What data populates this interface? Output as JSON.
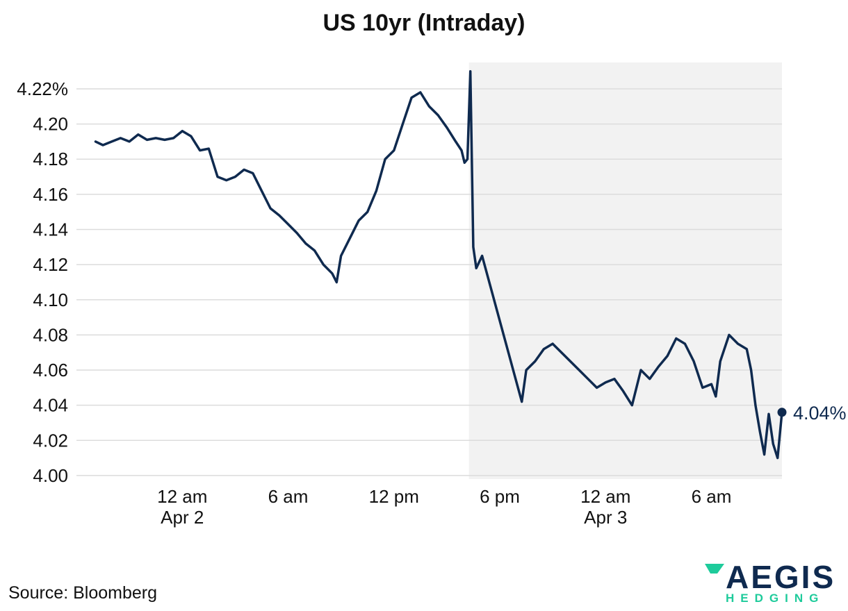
{
  "chart_data": {
    "type": "line",
    "title": "US 10yr (Intraday)",
    "xlabel": "",
    "ylabel": "",
    "y_unit": "%",
    "ylim": [
      3.998,
      4.235
    ],
    "y_ticks": [
      {
        "value": 4.22,
        "label": "4.22%"
      },
      {
        "value": 4.2,
        "label": "4.20"
      },
      {
        "value": 4.18,
        "label": "4.18"
      },
      {
        "value": 4.16,
        "label": "4.16"
      },
      {
        "value": 4.14,
        "label": "4.14"
      },
      {
        "value": 4.12,
        "label": "4.12"
      },
      {
        "value": 4.1,
        "label": "4.10"
      },
      {
        "value": 4.08,
        "label": "4.08"
      },
      {
        "value": 4.06,
        "label": "4.06"
      },
      {
        "value": 4.04,
        "label": "4.04"
      },
      {
        "value": 4.02,
        "label": "4.02"
      },
      {
        "value": 4.0,
        "label": "4.00"
      }
    ],
    "xlim": [
      "Apr 1 18:00",
      "Apr 3 10:00"
    ],
    "x_ticks": [
      {
        "value": "Apr 2 00:00",
        "label": "12 am",
        "sublabel": "Apr 2"
      },
      {
        "value": "Apr 2 06:00",
        "label": "6 am",
        "sublabel": ""
      },
      {
        "value": "Apr 2 12:00",
        "label": "12 pm",
        "sublabel": ""
      },
      {
        "value": "Apr 2 18:00",
        "label": "6 pm",
        "sublabel": ""
      },
      {
        "value": "Apr 3 00:00",
        "label": "12 am",
        "sublabel": "Apr 3"
      },
      {
        "value": "Apr 3 06:00",
        "label": "6 am",
        "sublabel": ""
      }
    ],
    "shaded_region": {
      "from": "Apr 2 16:15",
      "to": "Apr 3 10:00",
      "color": "#f2f2f2"
    },
    "grid": true,
    "legend": "none",
    "series": [
      {
        "color": "#0f2a4f",
        "x": [
          "Apr 1 19:05",
          "Apr 1 19:30",
          "Apr 1 20:00",
          "Apr 1 20:30",
          "Apr 1 21:00",
          "Apr 1 21:30",
          "Apr 1 22:00",
          "Apr 1 22:30",
          "Apr 1 23:00",
          "Apr 1 23:30",
          "Apr 2 00:00",
          "Apr 2 00:30",
          "Apr 2 01:00",
          "Apr 2 01:30",
          "Apr 2 02:00",
          "Apr 2 02:30",
          "Apr 2 03:00",
          "Apr 2 03:30",
          "Apr 2 04:00",
          "Apr 2 04:30",
          "Apr 2 05:00",
          "Apr 2 05:30",
          "Apr 2 06:00",
          "Apr 2 06:30",
          "Apr 2 07:00",
          "Apr 2 07:30",
          "Apr 2 08:00",
          "Apr 2 08:30",
          "Apr 2 08:45",
          "Apr 2 09:00",
          "Apr 2 09:30",
          "Apr 2 10:00",
          "Apr 2 10:30",
          "Apr 2 11:00",
          "Apr 2 11:30",
          "Apr 2 12:00",
          "Apr 2 12:30",
          "Apr 2 13:00",
          "Apr 2 13:30",
          "Apr 2 14:00",
          "Apr 2 14:30",
          "Apr 2 15:00",
          "Apr 2 15:30",
          "Apr 2 15:50",
          "Apr 2 16:00",
          "Apr 2 16:10",
          "Apr 2 16:20",
          "Apr 2 16:30",
          "Apr 2 16:40",
          "Apr 2 17:00",
          "Apr 2 19:15",
          "Apr 2 19:30",
          "Apr 2 20:00",
          "Apr 2 20:30",
          "Apr 2 21:00",
          "Apr 2 21:30",
          "Apr 2 22:00",
          "Apr 2 22:30",
          "Apr 2 23:00",
          "Apr 2 23:30",
          "Apr 3 00:00",
          "Apr 3 00:30",
          "Apr 3 01:00",
          "Apr 3 01:30",
          "Apr 3 02:00",
          "Apr 3 02:30",
          "Apr 3 03:00",
          "Apr 3 03:30",
          "Apr 3 04:00",
          "Apr 3 04:30",
          "Apr 3 05:00",
          "Apr 3 05:30",
          "Apr 3 06:00",
          "Apr 3 06:15",
          "Apr 3 06:30",
          "Apr 3 07:00",
          "Apr 3 07:30",
          "Apr 3 08:00",
          "Apr 3 08:15",
          "Apr 3 08:30",
          "Apr 3 08:45",
          "Apr 3 09:00",
          "Apr 3 09:15",
          "Apr 3 09:30",
          "Apr 3 09:45",
          "Apr 3 10:00"
        ],
        "y": [
          4.19,
          4.188,
          4.19,
          4.192,
          4.19,
          4.194,
          4.191,
          4.192,
          4.191,
          4.192,
          4.196,
          4.193,
          4.185,
          4.186,
          4.17,
          4.168,
          4.17,
          4.174,
          4.172,
          4.162,
          4.152,
          4.148,
          4.143,
          4.138,
          4.132,
          4.128,
          4.12,
          4.115,
          4.11,
          4.125,
          4.135,
          4.145,
          4.15,
          4.162,
          4.18,
          4.185,
          4.2,
          4.215,
          4.218,
          4.21,
          4.205,
          4.198,
          4.19,
          4.185,
          4.178,
          4.18,
          4.23,
          4.13,
          4.118,
          4.125,
          4.042,
          4.06,
          4.065,
          4.072,
          4.075,
          4.07,
          4.065,
          4.06,
          4.055,
          4.05,
          4.053,
          4.055,
          4.048,
          4.04,
          4.06,
          4.055,
          4.062,
          4.068,
          4.078,
          4.075,
          4.065,
          4.05,
          4.052,
          4.045,
          4.065,
          4.08,
          4.075,
          4.072,
          4.06,
          4.04,
          4.025,
          4.012,
          4.035,
          4.018,
          4.01,
          4.036
        ]
      }
    ],
    "end_label": "4.04%",
    "source": "Source: Bloomberg"
  },
  "logo": {
    "word": "AEGIS",
    "sub": "HEDGING",
    "mark_color": "#1ecb9b",
    "word_color": "#0f2a4f"
  }
}
